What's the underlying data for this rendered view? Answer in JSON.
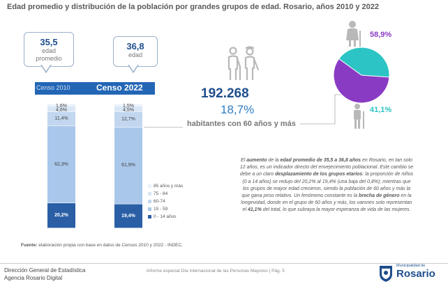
{
  "title": "Edad promedio y distribución de la población por grandes grupos de edad. Rosario, años 2010 y 2022",
  "callouts": [
    {
      "value": "35,5",
      "label1": "edad",
      "label2": "promedio"
    },
    {
      "value": "36,8",
      "label1": "edad",
      "label2": ""
    }
  ],
  "census_labels": [
    "Censo 2010",
    "Censo 2022"
  ],
  "highlight": {
    "number": "192.268",
    "percent": "18,7%",
    "caption": "habitantes con 60 años y más"
  },
  "paragraph": [
    {
      "t": "El ",
      "b": false
    },
    {
      "t": "aumento",
      "b": true
    },
    {
      "t": " de la ",
      "b": false
    },
    {
      "t": "edad promedio de 35,5 a 36,8 años",
      "b": true
    },
    {
      "t": " en Rosario, en tan solo 12 años, es un indicador directo del envejecimiento poblacional. Este cambio se debe a un claro ",
      "b": false
    },
    {
      "t": "desplazamiento de los grupos etarios",
      "b": true
    },
    {
      "t": ": la proporción de niños (0 a 14 años) se redujo del 20,2% al 19,4% (una baja del 0,8%); mientras que los grupos de mayor edad crecieron, siendo la población de 60 años y más la que gana peso relativo. Un fenómeno constante es la ",
      "b": false
    },
    {
      "t": "brecha de género",
      "b": true
    },
    {
      "t": " en la longevidad, donde en el grupo de 60 años y más, los varones solo representan el ",
      "b": false
    },
    {
      "t": "41,1%",
      "b": true
    },
    {
      "t": " del total, lo que subraya la mayor esperanza de vida de las mujeres.",
      "b": false
    }
  ],
  "source_label": "Fuente:",
  "source_text": " elaboración propia con base en datos de Censos 2010 y 2022 - INDEC.",
  "footer": {
    "line1": "Dirección General de Estadística",
    "line2": "Agencia Rosario Digital",
    "center": "Informe especial Día Internacional de las Personas Mayores | Pág. 5",
    "logo_sub": "Municipalidad de",
    "logo_text": "Rosario"
  },
  "colors": {
    "seg_0_14": "#2a5fa6",
    "seg_15_59": "#a9c7ea",
    "seg_60_74": "#c2d7ef",
    "seg_75_84": "#d9e6f5",
    "seg_85": "#eaf1fa",
    "pie_women": "#8a3bc4",
    "pie_men": "#2cc4c4"
  },
  "chart_data": [
    {
      "type": "bar",
      "stacked": true,
      "categories": [
        "Censo 2010",
        "Censo 2022"
      ],
      "series": [
        {
          "name": "0 - 14 años",
          "values": [
            20.2,
            19.4
          ],
          "labels": [
            "20,2%",
            "19,4%"
          ]
        },
        {
          "name": "15 - 59",
          "values": [
            62.3,
            61.9
          ],
          "labels": [
            "62,3%",
            "61,9%"
          ]
        },
        {
          "name": "60-74",
          "values": [
            11.4,
            12.7
          ],
          "labels": [
            "11,4%",
            "12,7%"
          ]
        },
        {
          "name": "75 - 84",
          "values": [
            4.6,
            4.5
          ],
          "labels": [
            "4,6%",
            "4,5%"
          ]
        },
        {
          "name": "85 años y más",
          "values": [
            1.6,
            1.5
          ],
          "labels": [
            "1,6%",
            "1,5%"
          ]
        }
      ],
      "legend_position": "right"
    },
    {
      "type": "pie",
      "slices": [
        {
          "value": 58.9,
          "label": "58,9%"
        },
        {
          "value": 41.1,
          "label": "41,1%"
        }
      ]
    }
  ]
}
